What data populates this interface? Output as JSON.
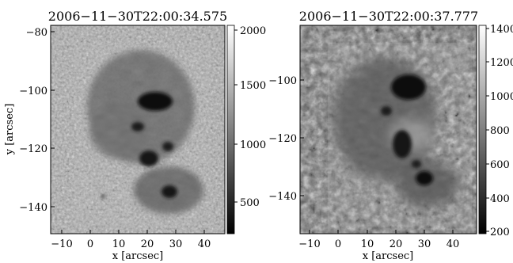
{
  "panels": [
    {
      "title": "2006−11−30T22:00:34.575",
      "xlabel": "x [arcsec]",
      "ylabel": "y [arcsec]",
      "x_ticks": [
        "−10",
        "0",
        "10",
        "20",
        "30",
        "40"
      ],
      "y_ticks": [
        "−80",
        "−100",
        "−120",
        "−140"
      ],
      "colorbar_ticks": [
        "2000",
        "1500",
        "1000",
        "500"
      ],
      "colorbar_range": [
        250,
        2050
      ]
    },
    {
      "title": "2006−11−30T22:00:37.777",
      "xlabel": "x [arcsec]",
      "ylabel": "",
      "x_ticks": [
        "−10",
        "0",
        "10",
        "20",
        "30",
        "40"
      ],
      "y_ticks": [
        "−100",
        "−120",
        "−140"
      ],
      "colorbar_ticks": [
        "1400",
        "1200",
        "1000",
        "800",
        "600",
        "400",
        "200"
      ],
      "colorbar_range": [
        180,
        1420
      ]
    }
  ],
  "colors": {
    "background": "#ffffff",
    "axes": "#000000"
  },
  "colormap": "grayscale"
}
